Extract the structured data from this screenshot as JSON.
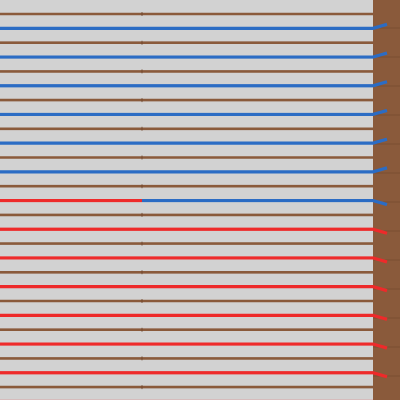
{
  "colors": {
    "background": "#d2d2d2",
    "brown_line": "#8a5a3b",
    "blue_line": "#2b6cc4",
    "red_line": "#ee2a2a",
    "right_bar": "#8a5a3b",
    "bar_dividers": "#6b4329"
  },
  "board": {
    "rows": [
      {
        "color": "brown"
      },
      {
        "color": "blue"
      },
      {
        "color": "brown"
      },
      {
        "color": "blue"
      },
      {
        "color": "brown"
      },
      {
        "color": "blue"
      },
      {
        "color": "brown"
      },
      {
        "color": "blue"
      },
      {
        "color": "brown"
      },
      {
        "color": "blue"
      },
      {
        "color": "brown"
      },
      {
        "color": "blue"
      },
      {
        "color": "brown"
      },
      {
        "color": "split",
        "left": "red",
        "right": "blue"
      },
      {
        "color": "brown"
      },
      {
        "color": "red"
      },
      {
        "color": "brown"
      },
      {
        "color": "red"
      },
      {
        "color": "brown"
      },
      {
        "color": "red"
      },
      {
        "color": "brown"
      },
      {
        "color": "red"
      },
      {
        "color": "brown"
      },
      {
        "color": "red"
      },
      {
        "color": "brown"
      },
      {
        "color": "red"
      },
      {
        "color": "brown"
      },
      {
        "color": "red"
      }
    ]
  }
}
